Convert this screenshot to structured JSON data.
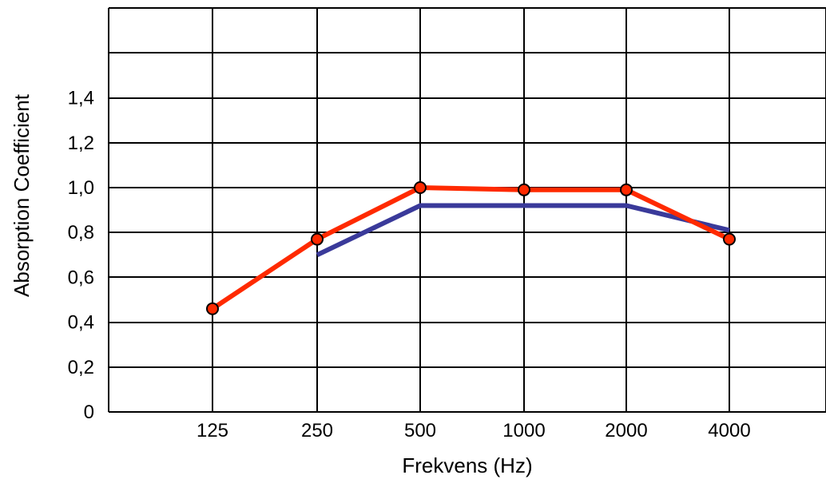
{
  "chart_data": {
    "type": "line",
    "title": "",
    "xlabel": "Frekvens (Hz)",
    "ylabel": "Absorption Coefficient",
    "categories": [
      "125",
      "250",
      "500",
      "1000",
      "2000",
      "4000"
    ],
    "y_tick_labels": [
      "0",
      "0,2",
      "0,4",
      "0,6",
      "0,8",
      "1,0",
      "1,2",
      "1,4"
    ],
    "ylim": [
      0,
      1.8
    ],
    "grid": true,
    "legend": "none",
    "series": [
      {
        "color": "#ff2a00",
        "line_style": "line with circular markers",
        "values": [
          0.46,
          0.77,
          1.0,
          0.99,
          0.99,
          0.77
        ]
      },
      {
        "color": "#3a3a9a",
        "line_style": "line",
        "values": [
          null,
          0.7,
          0.92,
          0.92,
          0.92,
          0.81
        ]
      }
    ]
  }
}
